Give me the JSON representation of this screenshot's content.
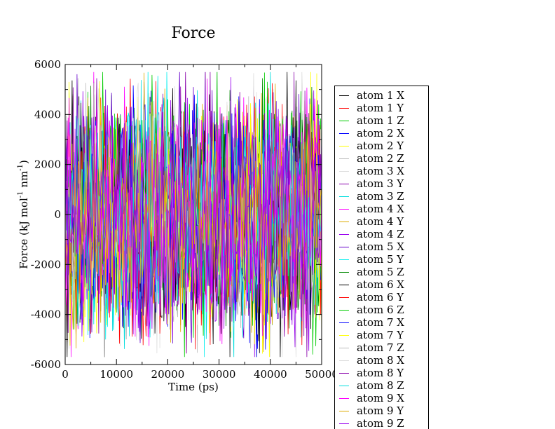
{
  "chart_data": {
    "type": "line",
    "title": "Force",
    "xlabel": "Time (ps)",
    "ylabel": {
      "base": "Force (kJ mol",
      "sup1": "-1",
      "mid": " nm",
      "sup2": "-1",
      "end": ")"
    },
    "xlim": [
      0,
      50000
    ],
    "ylim": [
      -6000,
      6000
    ],
    "xticks": [
      "0",
      "10000",
      "20000",
      "30000",
      "40000",
      "50000"
    ],
    "yticks": [
      "-6000",
      "-4000",
      "-2000",
      "0",
      "2000",
      "4000",
      "6000"
    ],
    "grid": false,
    "legend_placement": "right",
    "series": [
      {
        "name": "atom 1 X",
        "color": "#000000",
        "amplitude": 4200
      },
      {
        "name": "atom 1 Y",
        "color": "#ff0000",
        "amplitude": 4000
      },
      {
        "name": "atom 1 Z",
        "color": "#00cc00",
        "amplitude": 4100
      },
      {
        "name": "atom 2 X",
        "color": "#0000ff",
        "amplitude": 3900
      },
      {
        "name": "atom 2 Y",
        "color": "#ffff00",
        "amplitude": 4300
      },
      {
        "name": "atom 2 Z",
        "color": "#bbbbbb",
        "amplitude": 3800
      },
      {
        "name": "atom 3 X",
        "color": "#dddddd",
        "amplitude": 4400
      },
      {
        "name": "atom 3 Y",
        "color": "#8800aa",
        "amplitude": 4000
      },
      {
        "name": "atom 3 Z",
        "color": "#00dddd",
        "amplitude": 4100
      },
      {
        "name": "atom 4 X",
        "color": "#ff00ff",
        "amplitude": 4200
      },
      {
        "name": "atom 4 Y",
        "color": "#ddaa00",
        "amplitude": 3900
      },
      {
        "name": "atom 4 Z",
        "color": "#9900ee",
        "amplitude": 4000
      },
      {
        "name": "atom 5 X",
        "color": "#6600cc",
        "amplitude": 4100
      },
      {
        "name": "atom 5 Y",
        "color": "#00eeee",
        "amplitude": 3900
      },
      {
        "name": "atom 5 Z",
        "color": "#008800",
        "amplitude": 4000
      },
      {
        "name": "atom 6 X",
        "color": "#000000",
        "amplitude": 4300
      },
      {
        "name": "atom 6 Y",
        "color": "#ff0000",
        "amplitude": 4000
      },
      {
        "name": "atom 6 Z",
        "color": "#00cc00",
        "amplitude": 4100
      },
      {
        "name": "atom 7 X",
        "color": "#0000ff",
        "amplitude": 4000
      },
      {
        "name": "atom 7 Y",
        "color": "#ffff00",
        "amplitude": 4200
      },
      {
        "name": "atom 7 Z",
        "color": "#bbbbbb",
        "amplitude": 3900
      },
      {
        "name": "atom 8 X",
        "color": "#dddddd",
        "amplitude": 4300
      },
      {
        "name": "atom 8 Y",
        "color": "#8800aa",
        "amplitude": 4000
      },
      {
        "name": "atom 8 Z",
        "color": "#00dddd",
        "amplitude": 4100
      },
      {
        "name": "atom 9 X",
        "color": "#ff00ff",
        "amplitude": 4100
      },
      {
        "name": "atom 9 Y",
        "color": "#ddaa00",
        "amplitude": 3900
      },
      {
        "name": "atom 9 Z",
        "color": "#9900ee",
        "amplitude": 4000
      }
    ]
  }
}
